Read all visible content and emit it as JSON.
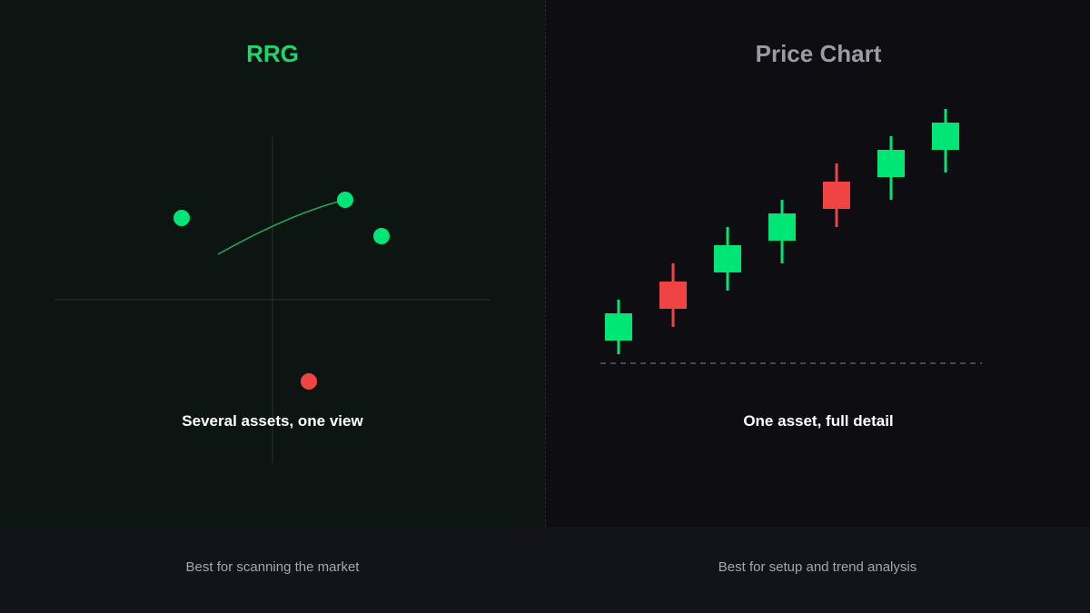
{
  "colors": {
    "green": "#00e676",
    "red": "#f04444",
    "trail": "#1fa85a",
    "axis": "#2a2e33",
    "baseline": "#5a5c62"
  },
  "left_panel": {
    "title": "RRG",
    "caption": "Several assets, one view",
    "footer": "Best for scanning the market"
  },
  "right_panel": {
    "title": "Price Chart",
    "caption": "One asset, full detail",
    "footer": "Best for setup and trend analysis"
  },
  "rrg_diagram": {
    "points": [
      {
        "color": "green"
      },
      {
        "color": "green"
      },
      {
        "color": "green"
      },
      {
        "color": "red"
      }
    ]
  },
  "candles_diagram": {
    "candles": [
      {
        "color": "green"
      },
      {
        "color": "red"
      },
      {
        "color": "green"
      },
      {
        "color": "green"
      },
      {
        "color": "red"
      },
      {
        "color": "green"
      },
      {
        "color": "green"
      }
    ]
  }
}
